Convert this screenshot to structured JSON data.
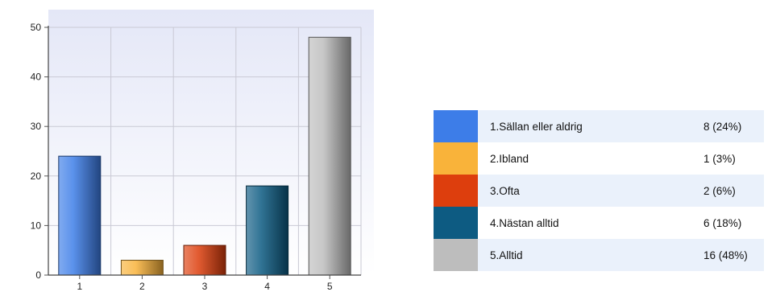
{
  "chart_data": {
    "type": "bar",
    "categories": [
      "1",
      "2",
      "3",
      "4",
      "5"
    ],
    "values": [
      24,
      3,
      6,
      18,
      48
    ],
    "ylim": [
      0,
      50
    ],
    "yticks": [
      "0",
      "10",
      "20",
      "30",
      "40",
      "50"
    ],
    "grid": true,
    "legend": "right",
    "colors": [
      "#3d7de8",
      "#f9b33a",
      "#dd3e0d",
      "#0d5b82",
      "#bdbdbd"
    ],
    "legend_entries": [
      {
        "label": "1.Sällan eller aldrig",
        "value": "8 (24%)"
      },
      {
        "label": "2.Ibland",
        "value": "1 (3%)"
      },
      {
        "label": "3.Ofta",
        "value": "2 (6%)"
      },
      {
        "label": "4.Nästan alltid",
        "value": "6 (18%)"
      },
      {
        "label": "5.Alltid",
        "value": "16 (48%)"
      }
    ]
  }
}
